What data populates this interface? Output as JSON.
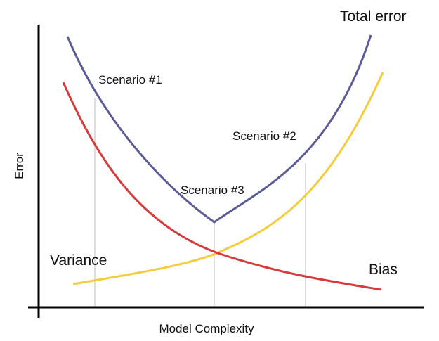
{
  "axes": {
    "x_label": "Model Complexity",
    "y_label": "Error"
  },
  "curves": {
    "total": {
      "label": "Total error",
      "color": "#5b5b98"
    },
    "variance": {
      "label": "Variance",
      "color": "#d63a3a"
    },
    "bias": {
      "label": "Bias",
      "color": "#f5cc3a"
    }
  },
  "scenarios": [
    {
      "label": "Scenario #1"
    },
    {
      "label": "Scenario #2"
    },
    {
      "label": "Scenario #3"
    }
  ],
  "colors": {
    "axis": "#000000",
    "guide": "#d8d0d6"
  }
}
